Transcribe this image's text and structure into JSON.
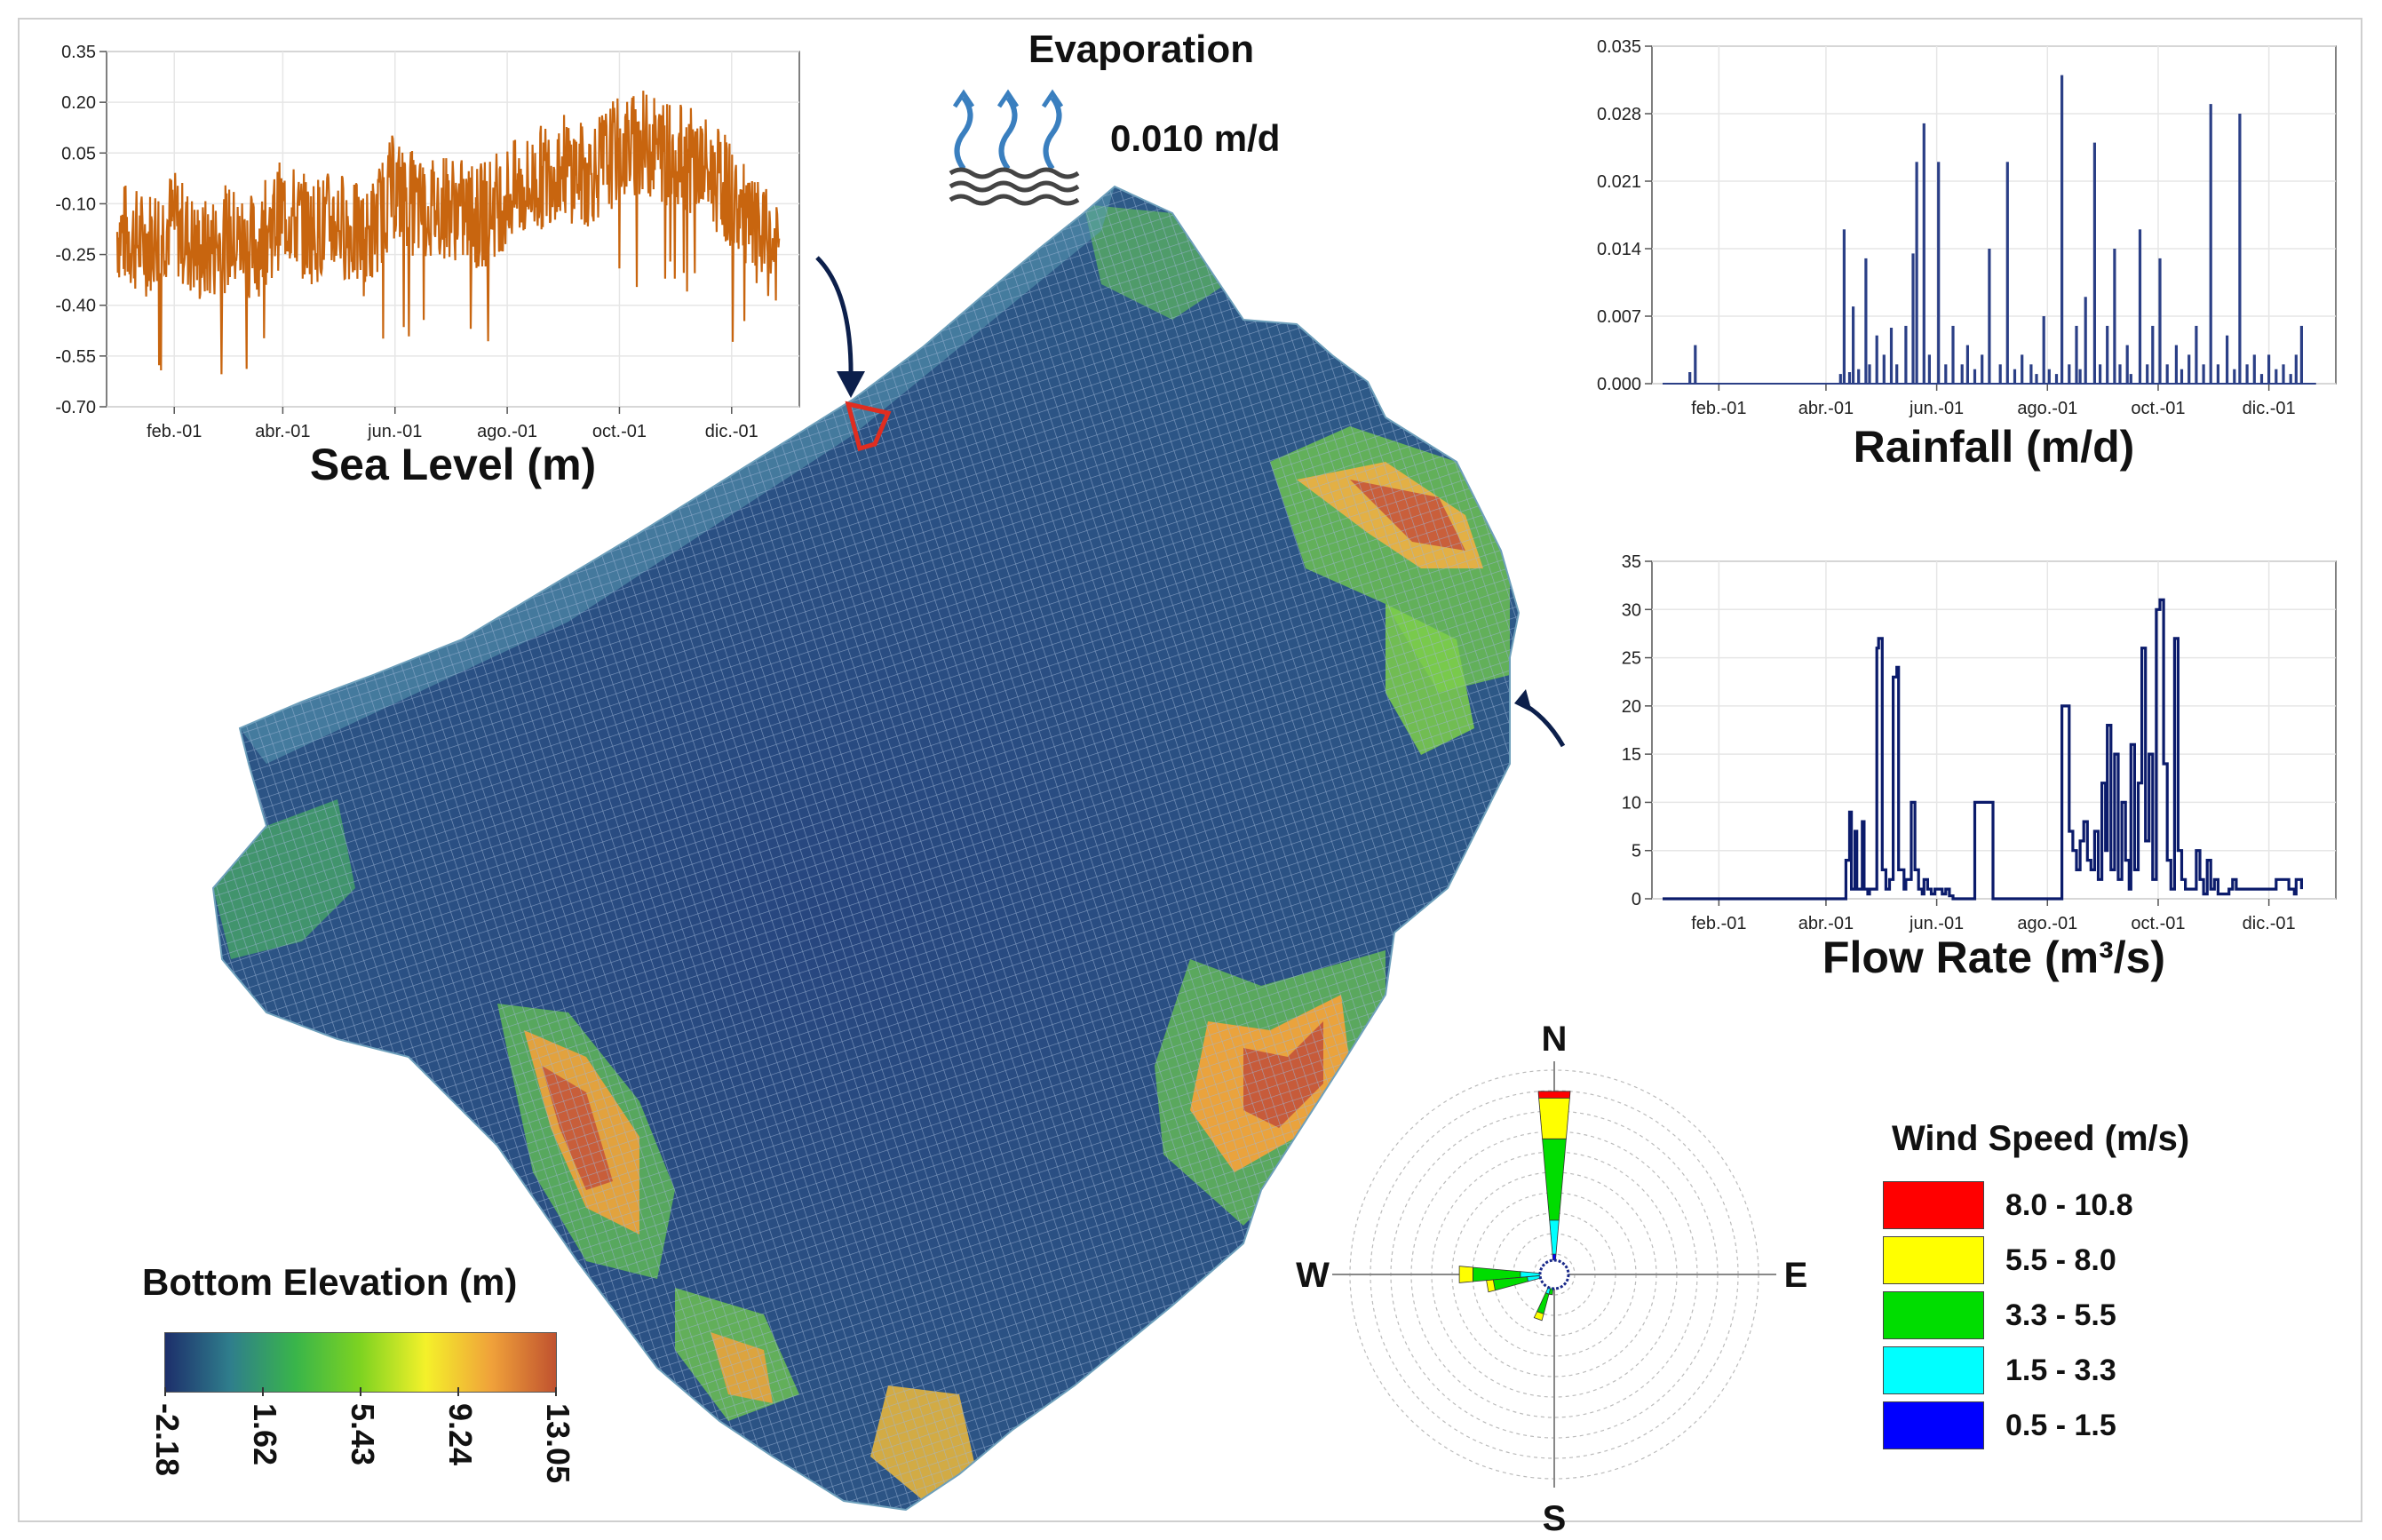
{
  "main_map": {
    "legend_title": "Bottom Elevation (m)",
    "colorbar_ticks": [
      "-2.18",
      "1.62",
      "5.43",
      "9.24",
      "13.05"
    ],
    "colorbar_colors": [
      "#1d2f6b",
      "#2f7e8c",
      "#39b54a",
      "#7ed321",
      "#f4f12a",
      "#f0a23a",
      "#c0522f"
    ]
  },
  "evaporation": {
    "title": "Evaporation",
    "value": "0.010 m/d"
  },
  "chart_data": [
    {
      "type": "line",
      "title": "Sea Level (m)",
      "x_ticks": [
        "feb.-01",
        "abr.-01",
        "jun.-01",
        "ago.-01",
        "oct.-01",
        "dic.-01"
      ],
      "y_ticks": [
        "0.35",
        "0.20",
        "0.05",
        "-0.10",
        "-0.25",
        "-0.40",
        "-0.55",
        "-0.70"
      ],
      "ylim": [
        -0.7,
        0.35
      ],
      "color": "#c8650f",
      "series": [
        {
          "x": [
            0,
            15,
            30,
            45,
            60,
            75,
            90,
            105,
            120,
            135,
            150,
            165,
            180,
            195,
            210,
            225,
            240,
            255,
            270,
            285,
            300,
            315,
            330,
            345,
            360
          ],
          "values": [
            -0.18,
            -0.22,
            -0.15,
            -0.25,
            -0.2,
            -0.23,
            -0.12,
            -0.18,
            -0.15,
            -0.22,
            -0.05,
            -0.12,
            -0.1,
            -0.15,
            -0.08,
            -0.05,
            0.02,
            -0.02,
            0.05,
            0.08,
            0.05,
            0.02,
            -0.05,
            -0.18,
            -0.25
          ],
          "spread": 0.16
        }
      ]
    },
    {
      "type": "bar",
      "title": "Rainfall (m/d)",
      "x_ticks": [
        "feb.-01",
        "abr.-01",
        "jun.-01",
        "ago.-01",
        "oct.-01",
        "dic.-01"
      ],
      "y_ticks": [
        "0.035",
        "0.028",
        "0.021",
        "0.014",
        "0.007",
        "0.000"
      ],
      "ylim": [
        0,
        0.035
      ],
      "color": "#2b3f86",
      "series": [
        {
          "x": [
            15,
            18,
            98,
            100,
            103,
            105,
            108,
            112,
            114,
            118,
            122,
            126,
            129,
            134,
            138,
            140,
            144,
            147,
            152,
            156,
            160,
            165,
            168,
            172,
            176,
            180,
            186,
            190,
            194,
            198,
            203,
            206,
            210,
            213,
            217,
            220,
            224,
            228,
            230,
            233,
            238,
            241,
            245,
            249,
            252,
            256,
            258,
            263,
            267,
            270,
            274,
            278,
            283,
            286,
            290,
            294,
            298,
            302,
            306,
            311,
            315,
            318,
            322,
            326,
            330,
            334,
            338,
            342,
            346,
            349,
            352
          ],
          "values": [
            0.0012,
            0.004,
            0.001,
            0.016,
            0.0012,
            0.008,
            0.0015,
            0.013,
            0.002,
            0.005,
            0.003,
            0.0058,
            0.002,
            0.006,
            0.0135,
            0.023,
            0.027,
            0.003,
            0.023,
            0.002,
            0.006,
            0.002,
            0.004,
            0.0015,
            0.003,
            0.014,
            0.002,
            0.023,
            0.0015,
            0.003,
            0.002,
            0.001,
            0.007,
            0.0015,
            0.001,
            0.032,
            0.002,
            0.006,
            0.0015,
            0.009,
            0.025,
            0.002,
            0.006,
            0.014,
            0.002,
            0.004,
            0.001,
            0.016,
            0.002,
            0.006,
            0.013,
            0.002,
            0.004,
            0.0015,
            0.003,
            0.006,
            0.002,
            0.029,
            0.002,
            0.005,
            0.0015,
            0.028,
            0.002,
            0.003,
            0.001,
            0.003,
            0.0015,
            0.002,
            0.001,
            0.003,
            0.006
          ]
        }
      ]
    },
    {
      "type": "line",
      "title": "Flow Rate (m³/s)",
      "x_ticks": [
        "feb.-01",
        "abr.-01",
        "jun.-01",
        "ago.-01",
        "oct.-01",
        "dic.-01"
      ],
      "y_ticks": [
        "35",
        "30",
        "25",
        "20",
        "15",
        "10",
        "5",
        "0"
      ],
      "ylim": [
        0,
        35
      ],
      "color": "#0b1b6b",
      "series": [
        {
          "x": [
            0,
            100,
            101,
            103,
            104,
            106,
            107,
            110,
            111,
            113,
            114,
            118,
            119,
            121,
            123,
            125,
            127,
            129,
            130,
            133,
            134,
            137,
            139,
            141,
            143,
            144,
            146,
            148,
            150,
            152,
            154,
            156,
            158,
            160,
            163,
            165,
            168,
            170,
            172,
            180,
            182,
            183,
            195,
            200,
            212,
            219,
            220,
            222,
            224,
            226,
            228,
            230,
            232,
            234,
            236,
            238,
            240,
            242,
            244,
            245,
            247,
            249,
            251,
            253,
            255,
            257,
            258,
            260,
            262,
            264,
            266,
            268,
            270,
            272,
            274,
            276,
            278,
            280,
            282,
            284,
            286,
            288,
            290,
            292,
            294,
            296,
            298,
            300,
            302,
            304,
            306,
            308,
            310,
            312,
            314,
            316,
            318,
            322,
            326,
            330,
            334,
            338,
            345,
            348,
            349,
            352
          ],
          "values": [
            0,
            0,
            4,
            9,
            1,
            7,
            1,
            8,
            1,
            0.5,
            1,
            26,
            27,
            3,
            1,
            2,
            23,
            24,
            3,
            1,
            2,
            10,
            3,
            1,
            0.5,
            2,
            1,
            0.5,
            1,
            1,
            0.5,
            1,
            0.3,
            0,
            0,
            0,
            0,
            0,
            10,
            10,
            0,
            0,
            0,
            0,
            0,
            0,
            20,
            20,
            7,
            5,
            3,
            6,
            8,
            4,
            3,
            7,
            2,
            12,
            5,
            18,
            3,
            15,
            2,
            10,
            4,
            1,
            16,
            3,
            12,
            26,
            6,
            15,
            2,
            30,
            31,
            14,
            4,
            1,
            27,
            5,
            2,
            1,
            1,
            1,
            5,
            2,
            0.5,
            4,
            1,
            2,
            0.5,
            0.5,
            0.5,
            1,
            2,
            1,
            1,
            1,
            1,
            1,
            1,
            2,
            1,
            0.5,
            2,
            1
          ]
        }
      ]
    },
    {
      "type": "wind-rose",
      "compass": [
        "N",
        "E",
        "S",
        "W"
      ],
      "legend_title": "Wind Speed (m/s)",
      "bins": [
        {
          "label": "8.0 - 10.8",
          "color": "#ff0000"
        },
        {
          "label": "5.5 - 8.0",
          "color": "#ffff00"
        },
        {
          "label": "3.3 - 5.5",
          "color": "#00dd00"
        },
        {
          "label": "1.5 - 3.3",
          "color": "#00ffff"
        },
        {
          "label": "0.5 - 1.5",
          "color": "#0000ff"
        }
      ],
      "petals": [
        {
          "direction_deg": 0,
          "cumulative": [
            3,
            8,
            20,
            26,
            27
          ]
        },
        {
          "direction_deg": 270,
          "cumulative": [
            2,
            5,
            12,
            14,
            14
          ]
        },
        {
          "direction_deg": 260,
          "cumulative": [
            1,
            4,
            9,
            10,
            10
          ]
        },
        {
          "direction_deg": 200,
          "cumulative": [
            1,
            3,
            6,
            7,
            7
          ]
        },
        {
          "direction_deg": 190,
          "cumulative": [
            1,
            2,
            3,
            3,
            3
          ]
        }
      ]
    }
  ]
}
